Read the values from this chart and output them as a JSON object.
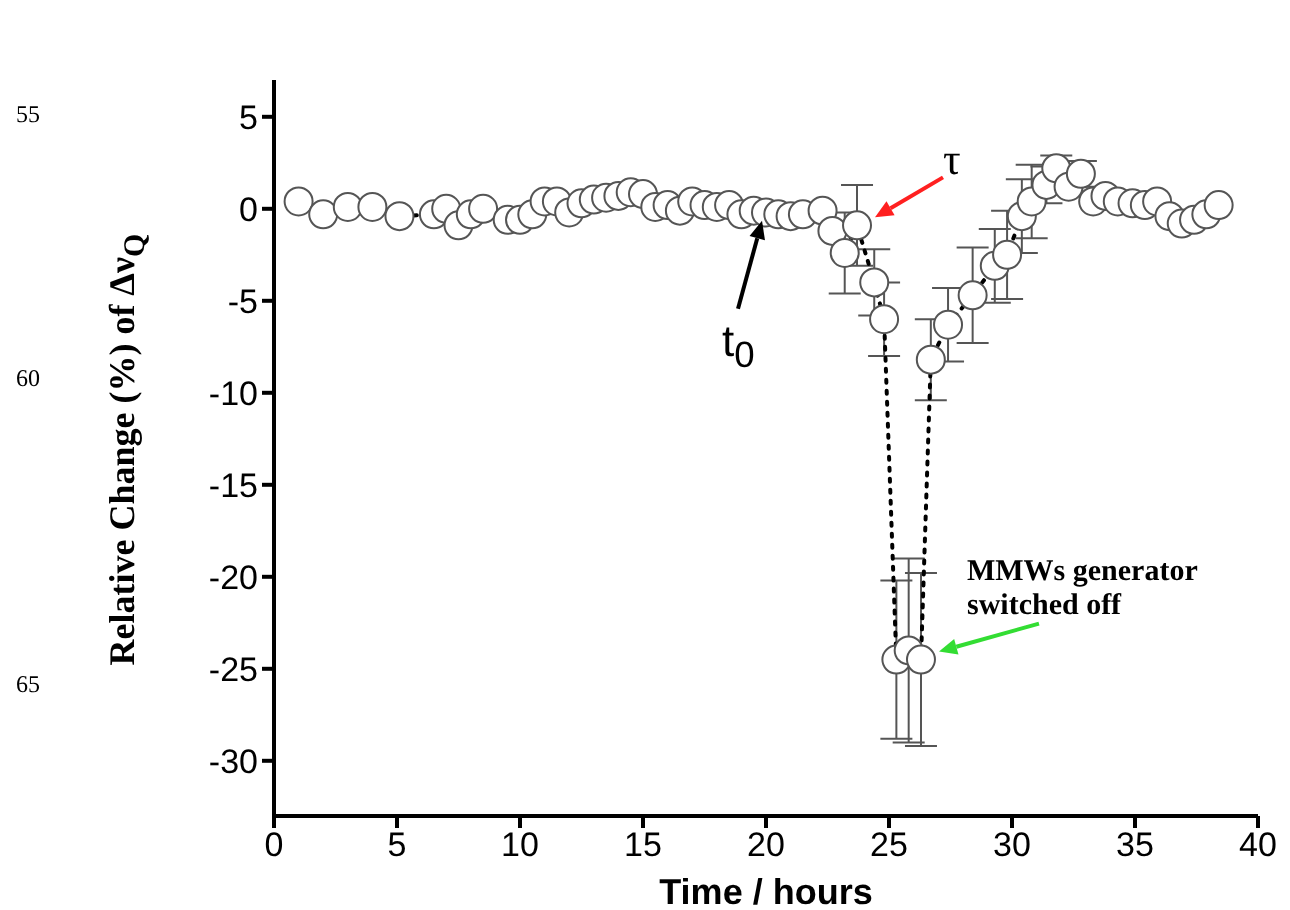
{
  "chart_data": {
    "type": "line",
    "xlabel": "Time / hours",
    "ylabel": "Relative Change (%) of Δν$_{Q}$",
    "xlim": [
      0,
      40
    ],
    "xticks": [
      0,
      5,
      10,
      15,
      20,
      25,
      30,
      35,
      40
    ],
    "ylim": [
      -33,
      7
    ],
    "yticks": [
      -30,
      -25,
      -20,
      -15,
      -10,
      -5,
      0,
      5
    ],
    "grid": false,
    "legend": false,
    "marker": "circle",
    "line_style": "dotted",
    "series": [
      {
        "color": "#555555",
        "x": [
          1.0,
          2.0,
          3.0,
          4.0,
          5.1,
          6.5,
          7.0,
          7.5,
          8.0,
          8.5,
          9.5,
          10.0,
          10.5,
          11.0,
          11.5,
          12.0,
          12.5,
          13.0,
          13.5,
          14.0,
          14.5,
          15.0,
          15.5,
          16.0,
          16.5,
          17.0,
          17.5,
          18.0,
          18.5,
          19.0,
          19.5,
          20.0,
          20.5,
          21.0,
          21.5,
          22.3,
          22.7,
          23.2,
          23.7,
          24.4,
          24.8,
          25.3,
          25.8,
          26.3,
          26.7,
          27.4,
          28.4,
          29.3,
          29.8,
          30.4,
          30.8,
          31.4,
          31.8,
          32.3,
          32.8,
          33.3,
          33.8,
          34.3,
          34.9,
          35.4,
          35.9,
          36.4,
          36.9,
          37.4,
          37.9,
          38.4
        ],
        "values": [
          0.4,
          -0.3,
          0.1,
          0.1,
          -0.4,
          -0.3,
          0,
          -0.9,
          -0.3,
          0,
          -0.6,
          -0.6,
          -0.3,
          0.4,
          0.4,
          -0.2,
          0.3,
          0.5,
          0.6,
          0.7,
          0.9,
          0.8,
          0.1,
          0.2,
          -0.1,
          0.4,
          0.2,
          0.1,
          0.2,
          -0.3,
          -0.1,
          -0.2,
          -0.3,
          -0.4,
          -0.3,
          -0.1,
          -1.2,
          -2.4,
          -0.9,
          -4.0,
          -6.0,
          -24.5,
          -24.0,
          -24.5,
          -8.2,
          -6.3,
          -4.7,
          -3.1,
          -2.5,
          -0.4,
          0.4,
          1.3,
          2.2,
          1.2,
          1.9,
          0.4,
          0.7,
          0.4,
          0.3,
          0.2,
          0.4,
          -0.4,
          -0.8,
          -0.6,
          -0.3,
          0.2
        ],
        "errors": [
          null,
          null,
          null,
          null,
          null,
          null,
          null,
          null,
          null,
          null,
          null,
          null,
          null,
          null,
          null,
          null,
          null,
          null,
          null,
          null,
          null,
          null,
          null,
          null,
          null,
          null,
          null,
          null,
          null,
          null,
          null,
          null,
          null,
          null,
          null,
          null,
          null,
          2.2,
          2.2,
          1.8,
          2.0,
          4.3,
          5.0,
          4.7,
          2.2,
          2.0,
          2.6,
          2.0,
          2.4,
          2.0,
          2.0,
          1.0,
          0.7,
          null,
          0.7,
          null,
          null,
          null,
          null,
          null,
          null,
          null,
          null,
          null,
          null,
          null
        ]
      }
    ],
    "annotations": [
      {
        "text": "τ",
        "x": 23.7,
        "y": -0.9
      },
      {
        "text": "t$_{0}$",
        "x": 20.0,
        "y": 0
      },
      {
        "text": "MMWs generator switched off",
        "x": 26.3,
        "y": -24.5
      },
      "55",
      "60",
      "65"
    ]
  }
}
